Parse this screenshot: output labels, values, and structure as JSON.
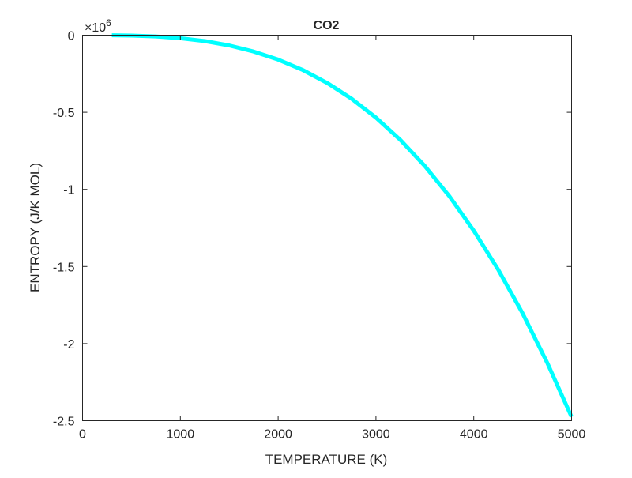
{
  "chart_data": {
    "type": "line",
    "title": "CO2",
    "xlabel": "TEMPERATURE (K)",
    "ylabel": "ENTROPY (J/K MOL)",
    "y_exponent_label": "×10",
    "y_exponent_power": "6",
    "xlim": [
      0,
      5000
    ],
    "ylim": [
      -2500000,
      0
    ],
    "x_ticks": [
      0,
      1000,
      2000,
      3000,
      4000,
      5000
    ],
    "x_tick_labels": [
      "0",
      "1000",
      "2000",
      "3000",
      "4000",
      "5000"
    ],
    "y_ticks": [
      0,
      -500000,
      -1000000,
      -1500000,
      -2000000,
      -2500000
    ],
    "y_tick_labels": [
      "0",
      "-0.5",
      "-1",
      "-1.5",
      "-2",
      "-2.5"
    ],
    "grid": false,
    "series": [
      {
        "color": "#00FFFF",
        "x": [
          300,
          500,
          750,
          1000,
          1250,
          1500,
          1750,
          2000,
          2250,
          2500,
          2750,
          3000,
          3250,
          3500,
          3750,
          4000,
          4250,
          4500,
          4750,
          5000
        ],
        "y": [
          -535,
          -2475,
          -8353,
          -19800,
          -38672,
          -66825,
          -106113,
          -158400,
          -225548,
          -309375,
          -411773,
          -534600,
          -679700,
          -848925,
          -1044141,
          -1267200,
          -1519959,
          -1804275,
          -2121998,
          -2475000
        ]
      }
    ]
  }
}
